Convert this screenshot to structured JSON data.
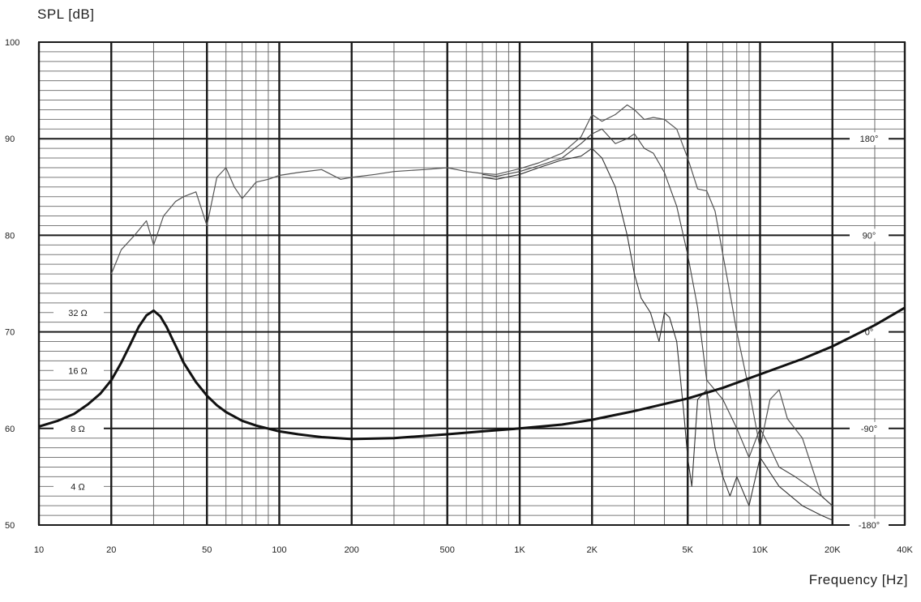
{
  "chart_data": {
    "type": "line",
    "title": "",
    "ylabel": "SPL  [dB]",
    "xlabel": "Frequency  [Hz]",
    "x_scale": "log",
    "xlim": [
      10,
      40000
    ],
    "ylim": [
      50,
      100
    ],
    "grid": true,
    "y_ticks": [
      50,
      60,
      70,
      80,
      90,
      100
    ],
    "x_ticks": [
      {
        "value": 10,
        "label": "10"
      },
      {
        "value": 20,
        "label": "20"
      },
      {
        "value": 50,
        "label": "50"
      },
      {
        "value": 100,
        "label": "100"
      },
      {
        "value": 200,
        "label": "200"
      },
      {
        "value": 500,
        "label": "500"
      },
      {
        "value": 1000,
        "label": "1K"
      },
      {
        "value": 2000,
        "label": "2K"
      },
      {
        "value": 5000,
        "label": "5K"
      },
      {
        "value": 10000,
        "label": "10K"
      },
      {
        "value": 20000,
        "label": "20K"
      },
      {
        "value": 40000,
        "label": "40K"
      }
    ],
    "impedance_labels": [
      {
        "label": "32  Ω",
        "at_db": 72
      },
      {
        "label": "16  Ω",
        "at_db": 66
      },
      {
        "label": "8  Ω",
        "at_db": 60
      },
      {
        "label": "4  Ω",
        "at_db": 54
      }
    ],
    "phase_labels": [
      {
        "label": "180°",
        "at_db": 90
      },
      {
        "label": "90°",
        "at_db": 80
      },
      {
        "label": "0°",
        "at_db": 70
      },
      {
        "label": "-90°",
        "at_db": 60
      },
      {
        "label": "-180°",
        "at_db": 50
      }
    ],
    "series": [
      {
        "role": "spl-0deg",
        "stroke": "#555555",
        "width": 1.2,
        "x": [
          20,
          22,
          25,
          28,
          30,
          33,
          37,
          40,
          45,
          50,
          55,
          60,
          65,
          70,
          80,
          90,
          100,
          120,
          150,
          180,
          200,
          250,
          300,
          400,
          500,
          600,
          700,
          800,
          1000,
          1200,
          1500,
          1800,
          2000,
          2200,
          2500,
          2800,
          3000,
          3300,
          3600,
          4000,
          4500,
          5000,
          5500,
          6000,
          6500,
          7000,
          7500,
          8000,
          9000,
          10000,
          11000,
          12000,
          13000,
          15000,
          18000,
          20000
        ],
        "y": [
          76,
          78.5,
          80,
          81.5,
          79,
          82,
          83.5,
          84,
          84.5,
          81,
          86,
          87,
          85,
          83.8,
          85.5,
          85.8,
          86.2,
          86.5,
          86.8,
          85.8,
          86,
          86.3,
          86.6,
          86.8,
          87,
          86.6,
          86.4,
          86.3,
          86.9,
          87.5,
          88.5,
          90.2,
          92.5,
          91.8,
          92.5,
          93.5,
          93,
          92,
          92.2,
          92,
          91,
          88,
          84.8,
          84.6,
          82.5,
          78,
          74,
          70,
          64,
          58,
          63,
          64,
          61,
          59,
          53,
          52
        ]
      },
      {
        "role": "spl-30deg",
        "stroke": "#444444",
        "width": 1.1,
        "x": [
          700,
          800,
          1000,
          1200,
          1500,
          1800,
          2000,
          2200,
          2500,
          2800,
          3000,
          3300,
          3600,
          4000,
          4500,
          5000,
          5500,
          6000,
          7000,
          8000,
          9000,
          10000,
          11000,
          12000,
          14000,
          16000,
          18000,
          20000
        ],
        "y": [
          86.3,
          86.1,
          86.6,
          87.2,
          88,
          89.5,
          90.5,
          91,
          89.5,
          90,
          90.5,
          89,
          88.5,
          86.5,
          83,
          78,
          72.5,
          65,
          63,
          60,
          57,
          60,
          58,
          56,
          55,
          54,
          53,
          52
        ]
      },
      {
        "role": "spl-60deg",
        "stroke": "#333333",
        "width": 1.1,
        "x": [
          700,
          800,
          1000,
          1200,
          1500,
          1800,
          2000,
          2200,
          2500,
          2800,
          3000,
          3200,
          3500,
          3800,
          4000,
          4200,
          4500,
          4800,
          5000,
          5200,
          5500,
          6000,
          6500,
          7000,
          7500,
          8000,
          9000,
          10000,
          12000,
          15000,
          18000,
          20000
        ],
        "y": [
          86,
          85.8,
          86.3,
          87,
          87.8,
          88.2,
          89,
          88,
          85,
          80,
          76,
          73.5,
          72,
          69,
          72,
          71.5,
          69,
          62,
          57,
          54,
          63,
          64,
          58,
          55,
          53,
          55,
          52,
          57,
          54,
          52,
          51,
          50.5
        ]
      },
      {
        "role": "impedance",
        "stroke": "#111111",
        "width": 3,
        "x": [
          10,
          12,
          14,
          16,
          18,
          20,
          22,
          24,
          26,
          28,
          30,
          32,
          34,
          36,
          38,
          40,
          45,
          50,
          55,
          60,
          70,
          80,
          100,
          120,
          150,
          200,
          300,
          500,
          700,
          1000,
          1500,
          2000,
          3000,
          5000,
          7000,
          10000,
          15000,
          20000,
          30000,
          40000
        ],
        "y": [
          60.2,
          60.8,
          61.5,
          62.5,
          63.6,
          65,
          66.8,
          68.7,
          70.5,
          71.7,
          72.2,
          71.6,
          70.5,
          69.2,
          68,
          66.8,
          64.8,
          63.4,
          62.4,
          61.7,
          60.8,
          60.3,
          59.7,
          59.4,
          59.1,
          58.9,
          59,
          59.4,
          59.7,
          60,
          60.4,
          60.9,
          61.8,
          63.1,
          64.2,
          65.6,
          67.2,
          68.5,
          70.7,
          72.5
        ]
      }
    ]
  }
}
